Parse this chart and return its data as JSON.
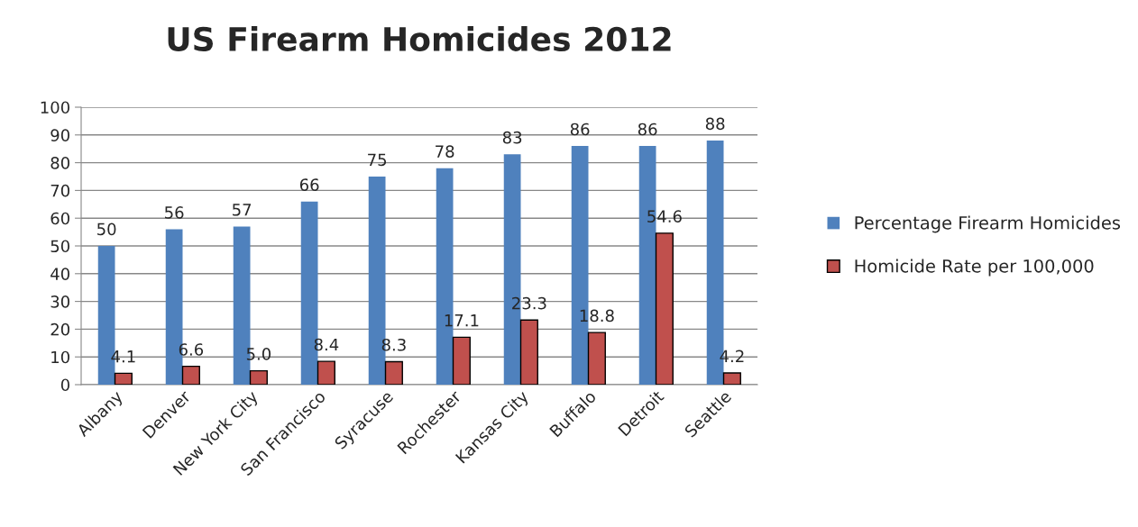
{
  "chart_data": {
    "type": "bar",
    "title": "US Firearm Homicides 2012",
    "categories": [
      "Albany",
      "Denver",
      "New York City",
      "San Francisco",
      "Syracuse",
      "Rochester",
      "Kansas City",
      "Buffalo",
      "Detroit",
      "Seattle"
    ],
    "series": [
      {
        "name": "Percentage Firearm Homicides",
        "color": "#4f81bd",
        "values": [
          50,
          56,
          57,
          66,
          75,
          78,
          83,
          86,
          86,
          88
        ],
        "value_labels": [
          "50",
          "56",
          "57",
          "66",
          "75",
          "78",
          "83",
          "86",
          "86",
          "88"
        ]
      },
      {
        "name": "Homicide Rate per 100,000",
        "color": "#c0504d",
        "values": [
          4.1,
          6.6,
          5.0,
          8.4,
          8.3,
          17.1,
          23.3,
          18.8,
          54.6,
          4.2
        ],
        "value_labels": [
          "4.1",
          "6.6",
          "5.0",
          "8.4",
          "8.3",
          "17.1",
          "23.3",
          "18.8",
          "54.6",
          "4.2"
        ]
      }
    ],
    "ylim": [
      0,
      100
    ],
    "yticks": [
      0,
      10,
      20,
      30,
      40,
      50,
      60,
      70,
      80,
      90,
      100
    ],
    "grid": "y",
    "legend": "right"
  }
}
